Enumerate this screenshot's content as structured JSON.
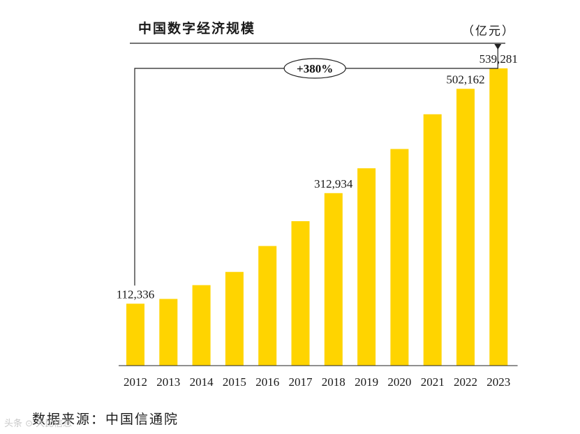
{
  "chart_data": {
    "type": "bar",
    "title": "中国数字经济规模",
    "unit": "（亿元）",
    "categories": [
      "2012",
      "2013",
      "2014",
      "2015",
      "2016",
      "2017",
      "2018",
      "2019",
      "2020",
      "2021",
      "2022",
      "2023"
    ],
    "values": [
      112336,
      121000,
      146000,
      170000,
      217000,
      262000,
      312934,
      358000,
      393000,
      456000,
      502162,
      539281
    ],
    "data_labels": [
      {
        "category": "2012",
        "text": "112,336"
      },
      {
        "category": "2018",
        "text": "312,934"
      },
      {
        "category": "2022",
        "text": "502,162"
      },
      {
        "category": "2023",
        "text": "539,281"
      }
    ],
    "annotation": {
      "text": "+380%",
      "from": "2012",
      "to": "2023"
    },
    "ylim": [
      0,
      600000
    ],
    "bar_color": "#FFD400",
    "xlabel": "",
    "ylabel": ""
  },
  "source": "数据来源：中国信通院",
  "watermark": "头条 ⊙ 大比信息"
}
